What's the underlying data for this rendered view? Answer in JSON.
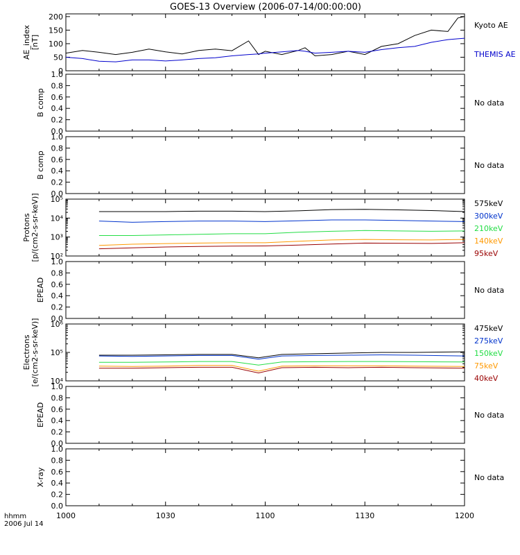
{
  "title": "GOES-13 Overview (2006-07-14/00:00:00)",
  "time_axis": {
    "ticks": [
      "1000",
      "1030",
      "1100",
      "1130",
      "1200"
    ],
    "unit_label": "hhmm",
    "date_label": "2006 Jul 14"
  },
  "chart_data": [
    {
      "type": "line",
      "ylabel": "AE_index\n[nT]",
      "yticks": [
        "0",
        "50",
        "100",
        "150",
        "200"
      ],
      "ylim": [
        0,
        210
      ],
      "x": [
        "10:00",
        "10:05",
        "10:10",
        "10:15",
        "10:20",
        "10:25",
        "10:30",
        "10:35",
        "10:40",
        "10:45",
        "10:50",
        "10:55",
        "10:58",
        "11:00",
        "11:05",
        "11:10",
        "11:12",
        "11:15",
        "11:20",
        "11:25",
        "11:30",
        "11:35",
        "11:40",
        "11:45",
        "11:50",
        "11:55",
        "11:58",
        "12:00"
      ],
      "series": [
        {
          "name": "Kyoto AE",
          "color": "#000000",
          "values": [
            65,
            75,
            68,
            60,
            68,
            80,
            70,
            62,
            75,
            80,
            74,
            110,
            60,
            72,
            60,
            75,
            85,
            55,
            60,
            72,
            60,
            90,
            100,
            130,
            150,
            145,
            195,
            200
          ]
        },
        {
          "name": "THEMIS AE",
          "color": "#0000cc",
          "values": [
            50,
            45,
            35,
            33,
            40,
            40,
            36,
            40,
            45,
            48,
            55,
            60,
            62,
            65,
            70,
            75,
            72,
            65,
            68,
            72,
            68,
            78,
            85,
            90,
            105,
            115,
            118,
            120
          ]
        }
      ]
    },
    {
      "type": "line",
      "ylabel": "B comp",
      "yticks": [
        "0.0",
        "0.2",
        "0.4",
        "0.6",
        "0.8",
        "1.0"
      ],
      "ylim": [
        0,
        1
      ],
      "series": [],
      "note": "No data"
    },
    {
      "type": "line",
      "ylabel": "B comp",
      "yticks": [
        "0.0",
        "0.2",
        "0.4",
        "0.6",
        "0.8",
        "1.0"
      ],
      "ylim": [
        0,
        1
      ],
      "series": [],
      "note": "No data"
    },
    {
      "type": "line",
      "log_scale": true,
      "ylabel": "Protons\n[p/(cm2-s-sr-keV)]",
      "yticks": [
        "10^2",
        "10^3",
        "10^4",
        "10^5"
      ],
      "ylim": [
        100,
        100000
      ],
      "x": [
        "10:10",
        "10:20",
        "10:30",
        "10:40",
        "10:50",
        "11:00",
        "11:10",
        "11:20",
        "11:30",
        "11:40",
        "11:50",
        "12:00"
      ],
      "series": [
        {
          "name": "575keV",
          "color": "#000000",
          "values": [
            22000,
            22000,
            22000,
            23000,
            23000,
            22000,
            24000,
            28000,
            29000,
            27000,
            25000,
            22000
          ]
        },
        {
          "name": "300keV",
          "color": "#0033cc",
          "values": [
            7000,
            6000,
            6500,
            7000,
            7000,
            6500,
            7200,
            8000,
            8000,
            7500,
            7000,
            6500
          ]
        },
        {
          "name": "210keV",
          "color": "#22dd44",
          "values": [
            1200,
            1200,
            1300,
            1400,
            1500,
            1500,
            1800,
            2000,
            2200,
            2100,
            2000,
            2100
          ]
        },
        {
          "name": "140keV",
          "color": "#ff9900",
          "values": [
            360,
            420,
            450,
            480,
            500,
            500,
            600,
            700,
            750,
            720,
            700,
            750
          ]
        },
        {
          "name": "95keV",
          "color": "#990000",
          "values": [
            240,
            270,
            300,
            320,
            330,
            340,
            380,
            430,
            480,
            470,
            460,
            500
          ]
        }
      ]
    },
    {
      "type": "line",
      "ylabel": "EPEAD",
      "yticks": [
        "0.0",
        "0.2",
        "0.4",
        "0.6",
        "0.8",
        "1.0"
      ],
      "ylim": [
        0,
        1
      ],
      "series": [],
      "note": "No data"
    },
    {
      "type": "line",
      "log_scale": true,
      "ylabel": "Electrons\n[e/(cm2-s-sr-keV)]",
      "yticks": [
        "10^4",
        "10^5",
        "10^6"
      ],
      "ylim": [
        10000,
        1000000
      ],
      "x": [
        "10:10",
        "10:20",
        "10:30",
        "10:40",
        "10:50",
        "10:58",
        "11:05",
        "11:15",
        "11:25",
        "11:35",
        "11:45",
        "12:00"
      ],
      "series": [
        {
          "name": "475keV",
          "color": "#000000",
          "values": [
            80000,
            80000,
            82000,
            85000,
            85000,
            65000,
            85000,
            90000,
            95000,
            100000,
            100000,
            105000
          ]
        },
        {
          "name": "275keV",
          "color": "#0033cc",
          "values": [
            75000,
            72000,
            75000,
            78000,
            78000,
            58000,
            75000,
            78000,
            80000,
            82000,
            80000,
            75000
          ]
        },
        {
          "name": "150keV",
          "color": "#22dd44",
          "values": [
            45000,
            45000,
            46000,
            48000,
            48000,
            36000,
            46000,
            47000,
            48000,
            48000,
            47000,
            46000
          ]
        },
        {
          "name": "75keV",
          "color": "#ff9900",
          "values": [
            33000,
            32000,
            33000,
            35000,
            35000,
            22000,
            33000,
            34000,
            34000,
            34000,
            33000,
            32000
          ]
        },
        {
          "name": "40keV",
          "color": "#990000",
          "values": [
            28000,
            28000,
            29000,
            30000,
            30000,
            19000,
            29000,
            30000,
            29000,
            30000,
            29000,
            28000
          ]
        }
      ]
    },
    {
      "type": "line",
      "ylabel": "EPEAD",
      "yticks": [
        "0.0",
        "0.2",
        "0.4",
        "0.6",
        "0.8",
        "1.0"
      ],
      "ylim": [
        0,
        1
      ],
      "series": [],
      "note": "No data"
    },
    {
      "type": "line",
      "ylabel": "X-ray",
      "yticks": [
        "0.0",
        "0.2",
        "0.4",
        "0.6",
        "0.8",
        "1.0"
      ],
      "ylim": [
        0,
        1
      ],
      "series": [],
      "note": "No data"
    }
  ]
}
